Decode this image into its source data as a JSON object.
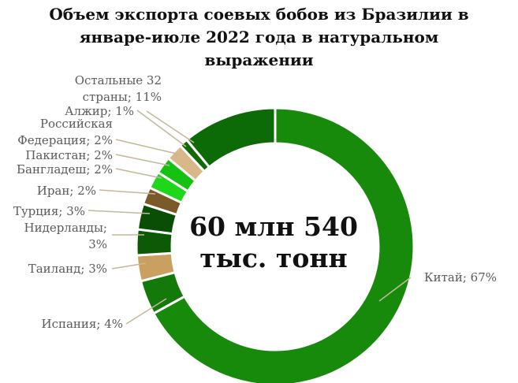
{
  "chart_data": {
    "type": "pie",
    "donut": true,
    "title": [
      "Объем экспорта соевых бобов из Бразилии в",
      "январе-июле 2022 года в натуральном",
      "выражении"
    ],
    "center_text": [
      "60 млн 540",
      "тыс. тонн"
    ],
    "slices": [
      {
        "name": "Китай",
        "value": 67,
        "label": [
          "Китай; 67%"
        ],
        "color": "#188a0b"
      },
      {
        "name": "Испания",
        "value": 4,
        "label": [
          "Испания; 4%"
        ],
        "color": "#137a09"
      },
      {
        "name": "Таиланд",
        "value": 3,
        "label": [
          "Таиланд; 3%"
        ],
        "color": "#c9a060"
      },
      {
        "name": "Нидерланды",
        "value": 3,
        "label": [
          "Нидерланды;",
          "3%"
        ],
        "color": "#0d5a06"
      },
      {
        "name": "Турция",
        "value": 3,
        "label": [
          "Турция; 3%"
        ],
        "color": "#0a4d05"
      },
      {
        "name": "Иран",
        "value": 2,
        "label": [
          "Иран; 2%"
        ],
        "color": "#7a5a2a"
      },
      {
        "name": "Бангладеш",
        "value": 2,
        "label": [
          "Бангладеш; 2%"
        ],
        "color": "#1ed61a"
      },
      {
        "name": "Пакистан",
        "value": 2,
        "label": [
          "Пакистан; 2%"
        ],
        "color": "#15c212"
      },
      {
        "name": "Российская Федерация",
        "value": 2,
        "label": [
          "Российская",
          "Федерация; 2%"
        ],
        "color": "#d8b888"
      },
      {
        "name": "Алжир",
        "value": 1,
        "label": [
          "Алжир; 1%"
        ],
        "color": "#0f6a06"
      },
      {
        "name": "Остальные 32 страны",
        "value": 11,
        "label": [
          "Остальные 32",
          "страны; 11%"
        ],
        "color": "#0c6a07"
      }
    ]
  }
}
